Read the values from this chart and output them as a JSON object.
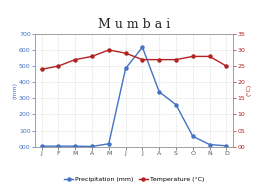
{
  "title": "M u m b a i",
  "months": [
    "J",
    "F",
    "M",
    "A",
    "M",
    "J",
    "J",
    "A",
    "S",
    "O",
    "N",
    "D"
  ],
  "precipitation": [
    3,
    3,
    3,
    1,
    18,
    485,
    617,
    340,
    260,
    64,
    13,
    5
  ],
  "temperature": [
    24,
    25,
    27,
    28,
    30,
    29,
    27,
    27,
    27,
    28,
    28,
    25
  ],
  "precip_color": "#4472c4",
  "temp_color": "#b22222",
  "precip_ylim": [
    0,
    700
  ],
  "temp_ylim": [
    0,
    35
  ],
  "precip_yticks": [
    0,
    100,
    200,
    300,
    400,
    500,
    600,
    700
  ],
  "temp_yticks": [
    0,
    5,
    10,
    15,
    20,
    25,
    30,
    35
  ],
  "precip_ylabel": "(mm)",
  "temp_ylabel": "(°C)",
  "legend_precip": "Precipitation (mm)",
  "legend_temp": "Temperature (°C)",
  "bg_color": "#ffffff",
  "grid_color": "#aaaaaa",
  "title_fontsize": 9,
  "tick_fontsize": 4.5,
  "ylabel_fontsize": 4.5,
  "legend_fontsize": 4.5,
  "precip_tick_color": "#4472c4",
  "temp_tick_color": "#b22222",
  "left_ylabel_color": "#4472c4",
  "right_ylabel_color": "#b22222"
}
